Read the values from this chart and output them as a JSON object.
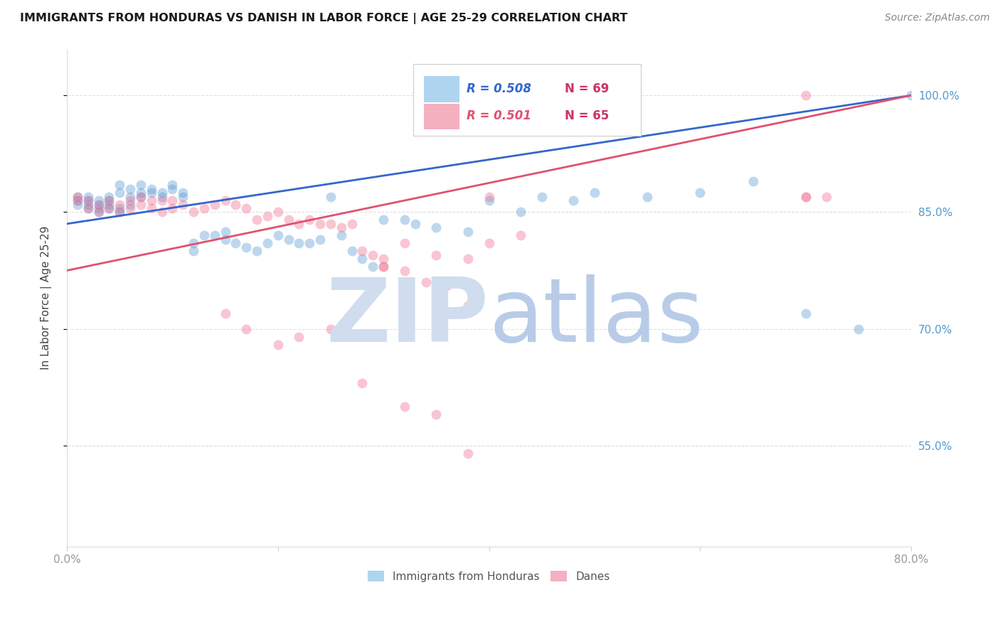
{
  "title": "IMMIGRANTS FROM HONDURAS VS DANISH IN LABOR FORCE | AGE 25-29 CORRELATION CHART",
  "source": "Source: ZipAtlas.com",
  "ylabel": "In Labor Force | Age 25-29",
  "xlim": [
    0.0,
    0.8
  ],
  "ylim": [
    0.42,
    1.06
  ],
  "xticks": [
    0.0,
    0.2,
    0.4,
    0.6,
    0.8
  ],
  "xtick_labels": [
    "0.0%",
    "",
    "",
    "",
    "80.0%"
  ],
  "ytick_labels": [
    "100.0%",
    "85.0%",
    "70.0%",
    "55.0%"
  ],
  "yticks": [
    1.0,
    0.85,
    0.7,
    0.55
  ],
  "blue_R": 0.508,
  "blue_N": 69,
  "pink_R": 0.501,
  "pink_N": 65,
  "blue_scatter_x": [
    0.01,
    0.01,
    0.01,
    0.02,
    0.02,
    0.02,
    0.02,
    0.03,
    0.03,
    0.03,
    0.03,
    0.04,
    0.04,
    0.04,
    0.04,
    0.05,
    0.05,
    0.05,
    0.05,
    0.06,
    0.06,
    0.06,
    0.07,
    0.07,
    0.07,
    0.08,
    0.08,
    0.09,
    0.09,
    0.1,
    0.1,
    0.11,
    0.11,
    0.12,
    0.12,
    0.13,
    0.14,
    0.15,
    0.15,
    0.16,
    0.17,
    0.18,
    0.19,
    0.2,
    0.21,
    0.22,
    0.23,
    0.24,
    0.25,
    0.26,
    0.27,
    0.28,
    0.29,
    0.3,
    0.32,
    0.33,
    0.35,
    0.38,
    0.4,
    0.43,
    0.45,
    0.48,
    0.5,
    0.55,
    0.6,
    0.65,
    0.7,
    0.75,
    0.8
  ],
  "blue_scatter_y": [
    0.86,
    0.865,
    0.87,
    0.855,
    0.86,
    0.865,
    0.87,
    0.85,
    0.855,
    0.86,
    0.865,
    0.855,
    0.86,
    0.865,
    0.87,
    0.85,
    0.855,
    0.875,
    0.885,
    0.86,
    0.87,
    0.88,
    0.87,
    0.875,
    0.885,
    0.875,
    0.88,
    0.87,
    0.875,
    0.88,
    0.885,
    0.87,
    0.875,
    0.8,
    0.81,
    0.82,
    0.82,
    0.815,
    0.825,
    0.81,
    0.805,
    0.8,
    0.81,
    0.82,
    0.815,
    0.81,
    0.81,
    0.815,
    0.87,
    0.82,
    0.8,
    0.79,
    0.78,
    0.84,
    0.84,
    0.835,
    0.83,
    0.825,
    0.865,
    0.85,
    0.87,
    0.865,
    0.875,
    0.87,
    0.875,
    0.89,
    0.72,
    0.7,
    1.0
  ],
  "pink_scatter_x": [
    0.01,
    0.01,
    0.02,
    0.02,
    0.03,
    0.03,
    0.04,
    0.04,
    0.05,
    0.05,
    0.06,
    0.06,
    0.07,
    0.07,
    0.08,
    0.08,
    0.09,
    0.09,
    0.1,
    0.1,
    0.11,
    0.12,
    0.13,
    0.14,
    0.15,
    0.16,
    0.17,
    0.18,
    0.19,
    0.2,
    0.21,
    0.22,
    0.23,
    0.24,
    0.25,
    0.26,
    0.27,
    0.28,
    0.29,
    0.3,
    0.32,
    0.35,
    0.38,
    0.4,
    0.3,
    0.32,
    0.34,
    0.36,
    0.38,
    0.7,
    0.15,
    0.17,
    0.2,
    0.22,
    0.25,
    0.28,
    0.32,
    0.35,
    0.38,
    0.7,
    0.7,
    0.72,
    0.4,
    0.43,
    0.3
  ],
  "pink_scatter_y": [
    0.865,
    0.87,
    0.855,
    0.865,
    0.85,
    0.86,
    0.855,
    0.865,
    0.85,
    0.86,
    0.855,
    0.865,
    0.86,
    0.87,
    0.855,
    0.865,
    0.85,
    0.865,
    0.855,
    0.865,
    0.86,
    0.85,
    0.855,
    0.86,
    0.865,
    0.86,
    0.855,
    0.84,
    0.845,
    0.85,
    0.84,
    0.835,
    0.84,
    0.835,
    0.835,
    0.83,
    0.835,
    0.8,
    0.795,
    0.79,
    0.81,
    0.795,
    0.79,
    0.87,
    0.78,
    0.775,
    0.76,
    0.755,
    0.73,
    1.0,
    0.72,
    0.7,
    0.68,
    0.69,
    0.7,
    0.63,
    0.6,
    0.59,
    0.54,
    0.87,
    0.87,
    0.87,
    0.81,
    0.82,
    0.78
  ],
  "blue_line_x": [
    0.0,
    0.8
  ],
  "blue_line_y": [
    0.835,
    1.0
  ],
  "pink_line_x": [
    0.0,
    0.8
  ],
  "pink_line_y": [
    0.775,
    1.0
  ],
  "title_color": "#1a1a1a",
  "source_color": "#888888",
  "axis_label_color": "#444444",
  "tick_color": "#999999",
  "watermark_zip_color": "#D0DDEF",
  "watermark_atlas_color": "#B8CCE8",
  "watermark_fontsize": 90,
  "grid_color": "#E0E0E0",
  "scatter_size": 100,
  "scatter_alpha": 0.4,
  "blue_color": "#5B9BD5",
  "pink_color": "#F07090",
  "blue_line_color": "#3366CC",
  "pink_line_color": "#E05070",
  "legend_R_color": "#3366CC",
  "legend_N_color": "#CC3366",
  "right_tick_color": "#5599CC"
}
